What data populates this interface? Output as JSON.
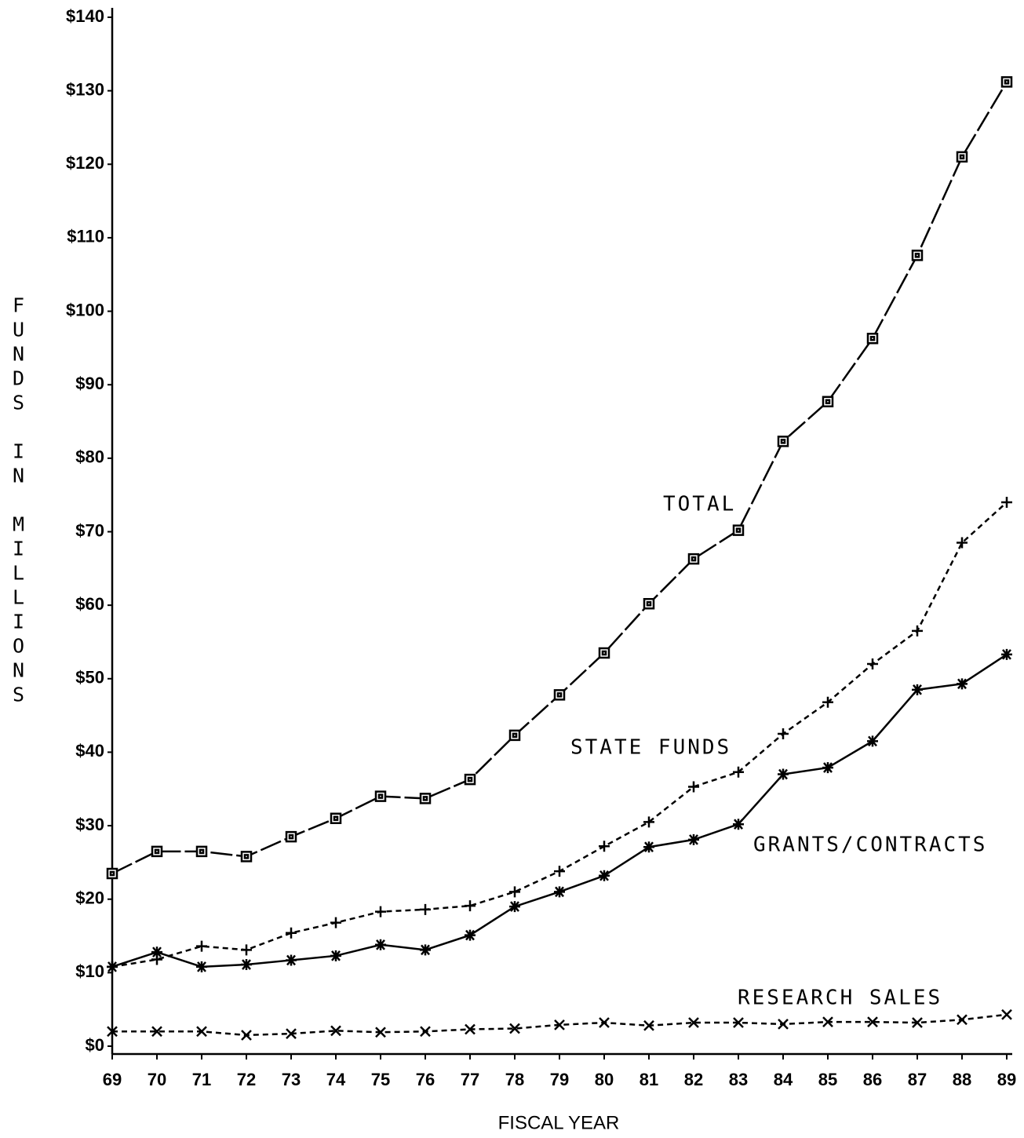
{
  "chart_data": {
    "type": "line",
    "ylabel": "FUNDS IN MILLIONS",
    "xlabel": "FISCAL YEAR",
    "categories": [
      "69",
      "70",
      "71",
      "72",
      "73",
      "74",
      "75",
      "76",
      "77",
      "78",
      "79",
      "80",
      "81",
      "82",
      "83",
      "84",
      "85",
      "86",
      "87",
      "88",
      "89"
    ],
    "ylim": [
      0,
      140
    ],
    "yticks": [
      {
        "value": 0,
        "label": "$0"
      },
      {
        "value": 10,
        "label": "$10"
      },
      {
        "value": 20,
        "label": "$20"
      },
      {
        "value": 30,
        "label": "$30"
      },
      {
        "value": 40,
        "label": "$40"
      },
      {
        "value": 50,
        "label": "$50"
      },
      {
        "value": 60,
        "label": "$60"
      },
      {
        "value": 70,
        "label": "$70"
      },
      {
        "value": 80,
        "label": "$80"
      },
      {
        "value": 90,
        "label": "$90"
      },
      {
        "value": 100,
        "label": "$100"
      },
      {
        "value": 110,
        "label": "$110"
      },
      {
        "value": 120,
        "label": "$120"
      },
      {
        "value": 130,
        "label": "$130"
      },
      {
        "value": 140,
        "label": "$140"
      }
    ],
    "grid": false,
    "series": [
      {
        "name": "TOTAL",
        "color": "#000000",
        "marker": "square",
        "line_style": "long-dash",
        "values": [
          23.5,
          26.5,
          26.5,
          25.8,
          28.5,
          31,
          34,
          33.7,
          36.3,
          42.3,
          47.8,
          53.5,
          60.2,
          66.3,
          70.2,
          82.3,
          87.7,
          96.3,
          107.6,
          121,
          131.2
        ]
      },
      {
        "name": "STATE FUNDS",
        "color": "#000000",
        "marker": "plus",
        "line_style": "dashed",
        "values": [
          10.8,
          11.8,
          13.6,
          13.1,
          15.4,
          16.8,
          18.3,
          18.6,
          19.1,
          21,
          23.8,
          27.2,
          30.5,
          35.3,
          37.3,
          42.5,
          46.8,
          52,
          56.5,
          68.5,
          74
        ]
      },
      {
        "name": "GRANTS/CONTRACTS",
        "color": "#000000",
        "marker": "asterisk",
        "line_style": "solid",
        "values": [
          10.8,
          12.8,
          10.8,
          11.1,
          11.7,
          12.3,
          13.8,
          13.1,
          15.1,
          19,
          21,
          23.2,
          27.1,
          28.1,
          30.2,
          37,
          37.9,
          41.5,
          48.5,
          49.3,
          53.3
        ]
      },
      {
        "name": "RESEARCH SALES",
        "color": "#000000",
        "marker": "x",
        "line_style": "dashed",
        "values": [
          2,
          2,
          2,
          1.5,
          1.7,
          2.1,
          1.9,
          2,
          2.3,
          2.4,
          2.9,
          3.2,
          2.8,
          3.2,
          3.2,
          3,
          3.3,
          3.3,
          3.2,
          3.6,
          4.3
        ]
      }
    ]
  }
}
